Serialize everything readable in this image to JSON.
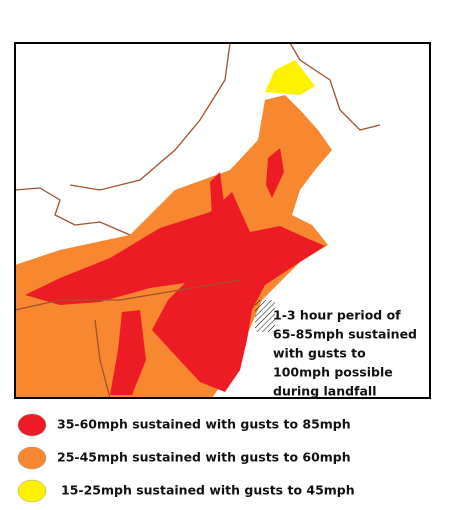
{
  "annotation": [
    "1-3 hour period of",
    "65-85mph sustained",
    "with gusts to",
    "100mph possible",
    "during landfall"
  ],
  "legend": [
    {
      "label": "35-60mph sustained with gusts to 85mph",
      "color": "#ed1c24"
    },
    {
      "label": "25-45mph sustained with gusts to 60mph",
      "color": "#f7882f"
    },
    {
      "label": "15-25mph sustained with gusts to 45mph",
      "color": "#fff200"
    }
  ]
}
